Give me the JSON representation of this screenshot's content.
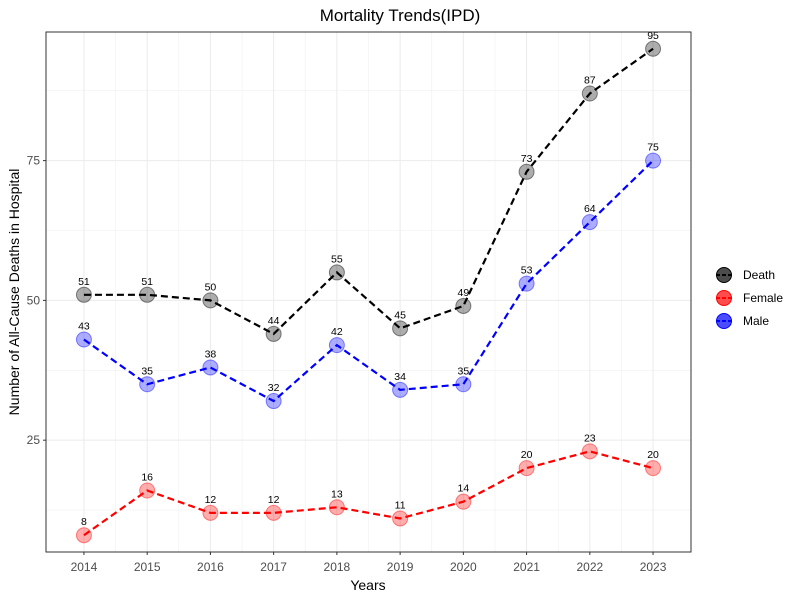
{
  "chart_data": {
    "type": "line",
    "title": "Mortality Trends(IPD)",
    "xlabel": "Years",
    "ylabel": "Number of All-Cause Deaths in Hospital",
    "x": [
      2014,
      2015,
      2016,
      2017,
      2018,
      2019,
      2020,
      2021,
      2022,
      2023
    ],
    "ylim": [
      5,
      98
    ],
    "y_ticks": [
      25,
      50,
      75
    ],
    "grid": true,
    "legend_position": "right",
    "series": [
      {
        "name": "Death",
        "color": "#000000",
        "values": [
          51,
          51,
          50,
          44,
          55,
          45,
          49,
          73,
          87,
          95
        ]
      },
      {
        "name": "Female",
        "color": "#ff0000",
        "values": [
          8,
          16,
          12,
          12,
          13,
          11,
          14,
          20,
          23,
          20
        ]
      },
      {
        "name": "Male",
        "color": "#0000ff",
        "values": [
          43,
          35,
          38,
          32,
          42,
          34,
          35,
          53,
          64,
          75
        ]
      }
    ]
  }
}
